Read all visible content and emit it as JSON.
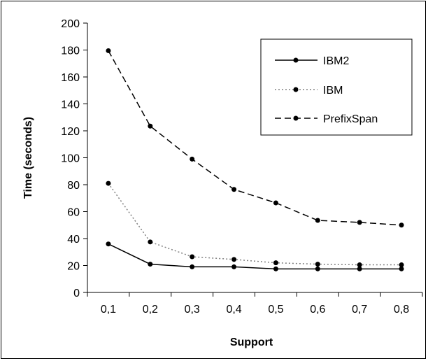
{
  "chart_data": {
    "type": "line",
    "title": "",
    "xlabel": "Support",
    "ylabel": "Time (seconds)",
    "categories": [
      "0,1",
      "0,2",
      "0,3",
      "0,4",
      "0,5",
      "0,6",
      "0,7",
      "0,8"
    ],
    "ylim": [
      0,
      200
    ],
    "yticks": [
      0,
      20,
      40,
      60,
      80,
      100,
      120,
      140,
      160,
      180,
      200
    ],
    "grid": false,
    "legend_position": "top-right",
    "series": [
      {
        "name": "IBM2",
        "style": "solid",
        "color": "#000000",
        "values": [
          36,
          21,
          19,
          19,
          17.5,
          17.5,
          17.5,
          17.5
        ]
      },
      {
        "name": "IBM",
        "style": "dotted",
        "color": "#808080",
        "values": [
          81,
          37.5,
          26.5,
          24.5,
          22,
          21,
          20.5,
          20.5
        ]
      },
      {
        "name": "PrefixSpan",
        "style": "dashed",
        "color": "#000000",
        "values": [
          179.5,
          123.5,
          99,
          76.5,
          66.5,
          53.5,
          52,
          50
        ]
      }
    ]
  }
}
